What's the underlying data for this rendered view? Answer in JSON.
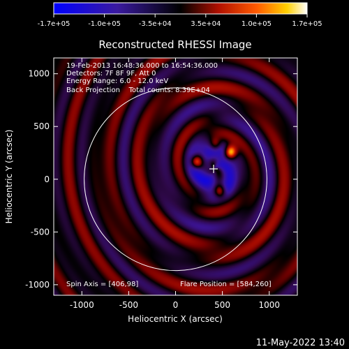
{
  "chart_data": {
    "type": "heatmap",
    "title": "Reconstructed RHESSI Image",
    "xlabel": "Heliocentric X (arcsec)",
    "ylabel": "Heliocentric Y (arcsec)",
    "xlim": [
      -1300,
      1300
    ],
    "ylim": [
      -1100,
      1150
    ],
    "x_ticks": [
      -1000,
      -500,
      0,
      500,
      1000
    ],
    "x_tick_labels": [
      "-1000",
      "-500",
      "0",
      "500",
      "1000"
    ],
    "y_ticks": [
      -1000,
      -500,
      0,
      500,
      1000
    ],
    "y_tick_labels": [
      "-1000",
      "-500",
      "0",
      "500",
      "1000"
    ],
    "colorbar": {
      "min": -170000,
      "max": 170000,
      "tick_labels": [
        "-1.7e+05",
        "-1.0e+05",
        "-3.5e+04",
        "3.5e+04",
        "1.0e+05",
        "1.7e+05"
      ]
    },
    "info_lines": [
      "19-Feb-2013 16:48:36.000 to 16:54:36.000",
      "Detectors: 7F 8F 9F, Att 0",
      "Energy Range: 6.0 - 12.0 keV",
      "Back Projection    Total counts: 8.39E+04"
    ],
    "spin_axis_text": "Spin Axis = [406,98]",
    "flare_position_text": "Flare Position = [584,260]",
    "spin_axis": [
      406,
      98
    ],
    "flare_position": [
      584,
      260
    ],
    "solar_limb_radius": 975,
    "bright_sources": [
      {
        "x": 584,
        "y": 260,
        "strength": 1.0
      },
      {
        "x": 220,
        "y": 170,
        "strength": 0.85
      },
      {
        "x": 470,
        "y": -110,
        "strength": 0.75
      },
      {
        "x": 420,
        "y": 330,
        "strength": 0.55
      }
    ],
    "timestamp": "11-May-2022 13:40"
  }
}
